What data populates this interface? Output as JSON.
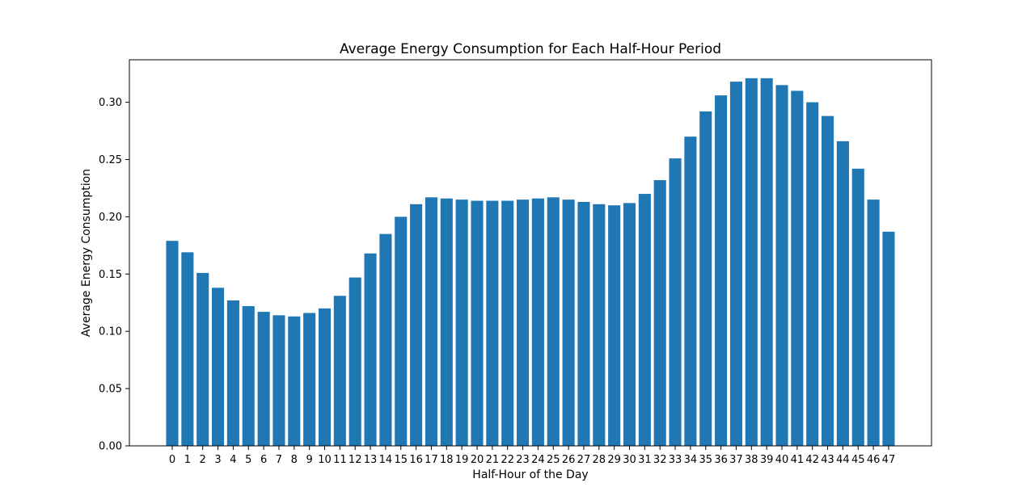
{
  "chart_data": {
    "type": "bar",
    "title": "Average Energy Consumption for Each Half-Hour Period",
    "xlabel": "Half-Hour of the Day",
    "ylabel": "Average Energy Consumption",
    "categories": [
      "0",
      "1",
      "2",
      "3",
      "4",
      "5",
      "6",
      "7",
      "8",
      "9",
      "10",
      "11",
      "12",
      "13",
      "14",
      "15",
      "16",
      "17",
      "18",
      "19",
      "20",
      "21",
      "22",
      "23",
      "24",
      "25",
      "26",
      "27",
      "28",
      "29",
      "30",
      "31",
      "32",
      "33",
      "34",
      "35",
      "36",
      "37",
      "38",
      "39",
      "40",
      "41",
      "42",
      "43",
      "44",
      "45",
      "46",
      "47"
    ],
    "values": [
      0.179,
      0.169,
      0.151,
      0.138,
      0.127,
      0.122,
      0.117,
      0.114,
      0.113,
      0.116,
      0.12,
      0.131,
      0.147,
      0.168,
      0.185,
      0.2,
      0.211,
      0.217,
      0.216,
      0.215,
      0.214,
      0.214,
      0.214,
      0.215,
      0.216,
      0.217,
      0.215,
      0.213,
      0.211,
      0.21,
      0.212,
      0.22,
      0.232,
      0.251,
      0.27,
      0.292,
      0.306,
      0.318,
      0.321,
      0.321,
      0.315,
      0.31,
      0.3,
      0.288,
      0.266,
      0.242,
      0.215,
      0.187
    ],
    "yticks": [
      "0.00",
      "0.05",
      "0.10",
      "0.15",
      "0.20",
      "0.25",
      "0.30"
    ],
    "ylim": [
      0,
      0.3371
    ],
    "grid": false,
    "legend": "none",
    "bar_color": "#1f77b4"
  }
}
